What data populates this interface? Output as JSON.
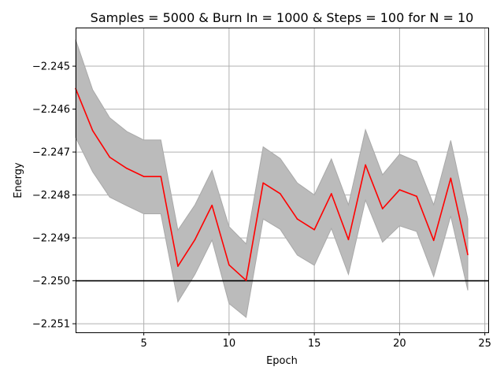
{
  "chart_data": {
    "type": "line",
    "title": "Samples = 5000 & Burn In = 1000 & Steps = 100 for N = 10",
    "xlabel": "Epoch",
    "ylabel": "Energy",
    "xlim": [
      1,
      25.2
    ],
    "ylim": [
      -2.2512,
      -2.2441
    ],
    "x_ticks": [
      5,
      10,
      15,
      20,
      25
    ],
    "x_tick_labels": [
      "5",
      "10",
      "15",
      "20",
      "25"
    ],
    "y_ticks": [
      -2.251,
      -2.25,
      -2.249,
      -2.248,
      -2.247,
      -2.246,
      -2.245
    ],
    "y_tick_labels": [
      "−2.251",
      "−2.250",
      "−2.249",
      "−2.248",
      "−2.247",
      "−2.246",
      "−2.245"
    ],
    "grid": true,
    "x": [
      1,
      2,
      3,
      4,
      5,
      6,
      7,
      8,
      9,
      10,
      11,
      12,
      13,
      14,
      15,
      16,
      17,
      18,
      19,
      20,
      21,
      22,
      23,
      24
    ],
    "series": [
      {
        "values": [
          -2.24552,
          -2.2465,
          -2.24712,
          -2.24738,
          -2.24757,
          -2.24757,
          -2.24966,
          -2.24904,
          -2.24824,
          -2.24963,
          -2.24999,
          -2.24772,
          -2.24797,
          -2.24856,
          -2.24881,
          -2.24797,
          -2.24904,
          -2.2473,
          -2.24832,
          -2.24788,
          -2.24803,
          -2.24906,
          -2.24761,
          -2.24939
        ],
        "color": "#ff0000"
      }
    ],
    "band": {
      "upper": [
        -2.24438,
        -2.24555,
        -2.2462,
        -2.24652,
        -2.24672,
        -2.24672,
        -2.24882,
        -2.24823,
        -2.24743,
        -2.24874,
        -2.24914,
        -2.24688,
        -2.24715,
        -2.24772,
        -2.248,
        -2.24716,
        -2.24823,
        -2.24648,
        -2.24753,
        -2.24705,
        -2.24722,
        -2.24823,
        -2.24673,
        -2.24856
      ],
      "lower": [
        -2.24666,
        -2.24746,
        -2.24805,
        -2.24825,
        -2.24844,
        -2.24844,
        -2.25049,
        -2.24985,
        -2.24905,
        -2.25053,
        -2.25085,
        -2.24856,
        -2.2488,
        -2.2494,
        -2.24964,
        -2.24878,
        -2.24985,
        -2.24812,
        -2.2491,
        -2.24872,
        -2.24885,
        -2.2499,
        -2.24849,
        -2.25022
      ],
      "color": "#bbbbbb"
    },
    "reference_line": {
      "y": -2.25,
      "color": "#000000"
    }
  }
}
